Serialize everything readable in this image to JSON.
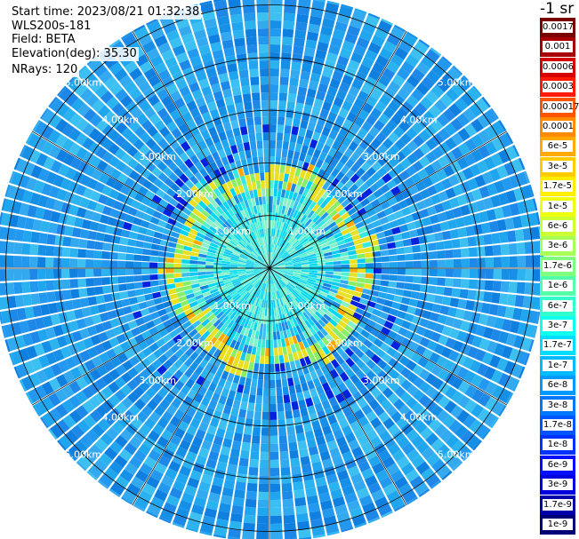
{
  "info": {
    "start_time": "Start time: 2023/08/21 01:32:38",
    "instrument": "WLS200s-181",
    "field": "Field: BETA",
    "elevation": "Elevation(deg): 35.30",
    "nrays": "NRays: 120"
  },
  "colorbar": {
    "unit_label": "-1 sr",
    "entries": [
      {
        "label": "0.0017",
        "color": "#7a0000"
      },
      {
        "label": "0.001",
        "color": "#a80000"
      },
      {
        "label": "0.0006",
        "color": "#d40000"
      },
      {
        "label": "0.0003",
        "color": "#ff1a00"
      },
      {
        "label": "0.00017",
        "color": "#ff5500"
      },
      {
        "label": "0.0001",
        "color": "#ff8c00"
      },
      {
        "label": "6e-5",
        "color": "#ffaa00"
      },
      {
        "label": "3e-5",
        "color": "#ffcc00"
      },
      {
        "label": "1.7e-5",
        "color": "#ffee00"
      },
      {
        "label": "1e-5",
        "color": "#eeff10"
      },
      {
        "label": "6e-6",
        "color": "#ccff33"
      },
      {
        "label": "3e-6",
        "color": "#a8ff55"
      },
      {
        "label": "1.7e-6",
        "color": "#80ff80"
      },
      {
        "label": "1e-6",
        "color": "#55ffa8"
      },
      {
        "label": "6e-7",
        "color": "#33ffcc"
      },
      {
        "label": "3e-7",
        "color": "#10ffee"
      },
      {
        "label": "1.7e-7",
        "color": "#00ddff"
      },
      {
        "label": "1e-7",
        "color": "#00bbff"
      },
      {
        "label": "6e-8",
        "color": "#0099ff"
      },
      {
        "label": "3e-8",
        "color": "#0077ff"
      },
      {
        "label": "1.7e-8",
        "color": "#0055ff"
      },
      {
        "label": "1e-8",
        "color": "#0033ff"
      },
      {
        "label": "6e-9",
        "color": "#0010ff"
      },
      {
        "label": "3e-9",
        "color": "#0000dd"
      },
      {
        "label": "1.7e-9",
        "color": "#0000aa"
      },
      {
        "label": "1e-9",
        "color": "#000077"
      }
    ]
  },
  "ppi": {
    "range_rings_km": [
      1,
      2,
      3,
      4,
      5
    ],
    "ring_labels": [
      "1.00km",
      "2.00km",
      "3.00km",
      "4.00km",
      "5.00km"
    ],
    "nrays": 120,
    "max_range_km": 5.2,
    "colors": {
      "background_field": [
        "#1fa6ee",
        "#2299ee",
        "#33aaf0",
        "#168fe6",
        "#2bb3f0",
        "#1e88e8",
        "#3cc0f2",
        "#0f7fe0"
      ],
      "near_field": [
        "#00d8f0",
        "#33e8e0",
        "#55f0d0",
        "#88f0c8",
        "#10c8f0"
      ],
      "ring_yellow": "#e8e020",
      "ring_green": "#88ee66",
      "ring_orange": "#ffa800",
      "dark_blue": "#0022dd",
      "grid": "#000000"
    }
  }
}
